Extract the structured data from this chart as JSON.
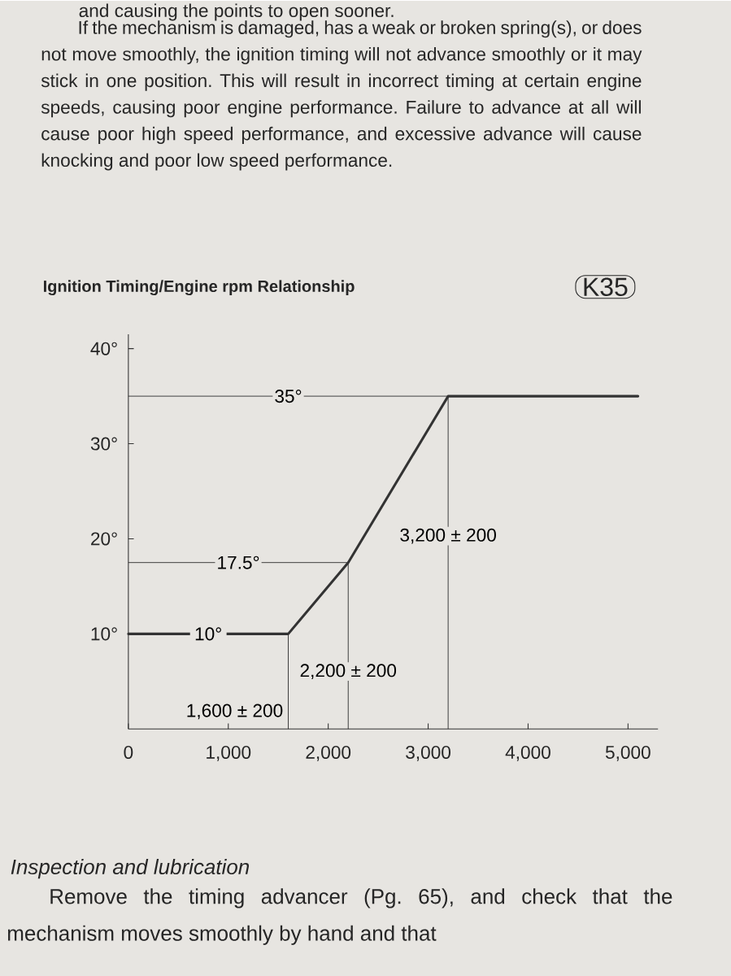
{
  "chart_data": {
    "type": "line",
    "title": "Ignition Timing/Engine rpm Relationship",
    "x": [
      0,
      1600,
      2200,
      3200,
      5100
    ],
    "values": [
      10,
      10,
      17.5,
      35,
      35
    ],
    "color": "#333333",
    "xlim": [
      0,
      5300
    ],
    "ylim": [
      0,
      41.5
    ],
    "xticks": [
      {
        "value": 0,
        "label": "0"
      },
      {
        "value": 1000,
        "label": "1,000"
      },
      {
        "value": 2000,
        "label": "2,000"
      },
      {
        "value": 3000,
        "label": "3,000"
      },
      {
        "value": 4000,
        "label": "4,000"
      },
      {
        "value": 5000,
        "label": "5,000"
      }
    ],
    "yticks": [
      {
        "value": 10,
        "label": "10°"
      },
      {
        "value": 20,
        "label": "20°"
      },
      {
        "value": 30,
        "label": "30°"
      },
      {
        "value": 40,
        "label": "40°"
      }
    ],
    "annotations": [
      "and causing the points to open sooner.",
      "If the mechanism is damaged, has a weak or broken spring(s), or does not move smoothly, the ignition timing will not advance smoothly or it may stick in one position. This will result in incorrect timing at certain engine speeds, causing poor engine performance. Failure to advance at all will cause poor high speed performance, and excessive advance will cause knocking and poor low speed performance.",
      "K35",
      {
        "text": "10°",
        "x": 800,
        "y": 10
      },
      "Inspection and lubrication",
      "Remove the timing advancer (Pg. 65), and check that the mechanism moves smoothly by hand and that"
    ],
    "ref_lines": [
      {
        "axis": "y",
        "value": 35,
        "label": "35°"
      },
      {
        "axis": "y",
        "value": 17.5,
        "label": "17.5°"
      },
      {
        "axis": "x",
        "value": 3200,
        "label": "3,200 ± 200"
      },
      {
        "axis": "x",
        "value": 2200,
        "label": "2,200 ± 200"
      },
      {
        "axis": "x",
        "value": 1600,
        "label": "1,600 ± 200"
      }
    ]
  }
}
